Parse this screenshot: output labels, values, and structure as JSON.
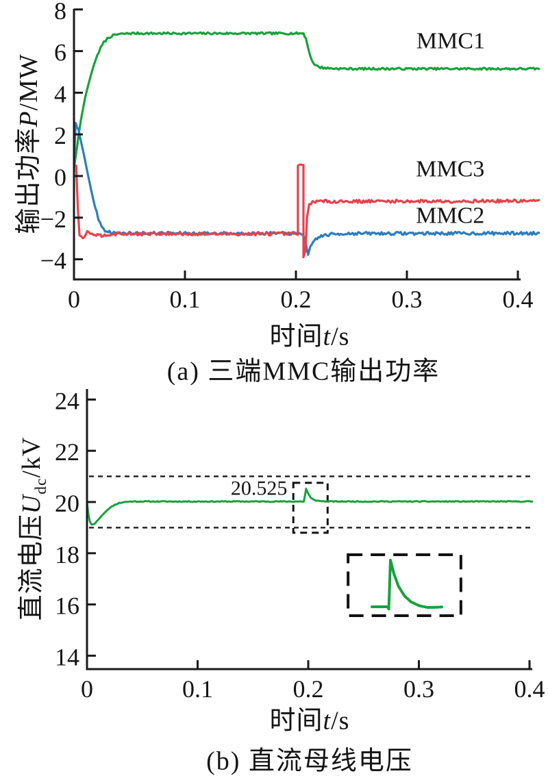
{
  "chart_data": [
    {
      "type": "line",
      "caption": "(a) 三端MMC输出功率",
      "xlabel": {
        "pre": "时间",
        "var": "t",
        "post": "/s"
      },
      "ylabel": {
        "pre": "输出功率",
        "var": "P",
        "post": "/MW"
      },
      "xlim": [
        0,
        0.42
      ],
      "ylim": [
        -5,
        8
      ],
      "grid": false,
      "xticks": [
        [
          0,
          "0"
        ],
        [
          0.1,
          "0.1"
        ],
        [
          0.2,
          "0.2"
        ],
        [
          0.3,
          "0.3"
        ],
        [
          0.4,
          "0.4"
        ]
      ],
      "yticks": [
        [
          8,
          "8"
        ],
        [
          6,
          "6"
        ],
        [
          4,
          "4"
        ],
        [
          2,
          "2"
        ],
        [
          0,
          "0"
        ],
        [
          -2,
          "−2"
        ],
        [
          -4,
          "−4"
        ]
      ],
      "series": [
        {
          "name": "MMC1",
          "color": "#17a23c",
          "points": [
            [
              0,
              0.4
            ],
            [
              0.002,
              1.1
            ],
            [
              0.004,
              1.9
            ],
            [
              0.006,
              2.6
            ],
            [
              0.008,
              3.2
            ],
            [
              0.01,
              3.75
            ],
            [
              0.0125,
              4.3
            ],
            [
              0.015,
              4.8
            ],
            [
              0.018,
              5.35
            ],
            [
              0.021,
              5.8
            ],
            [
              0.024,
              6.15
            ],
            [
              0.027,
              6.42
            ],
            [
              0.03,
              6.6
            ],
            [
              0.034,
              6.73
            ],
            [
              0.04,
              6.81
            ],
            [
              0.05,
              6.85
            ],
            [
              0.2068,
              6.85
            ],
            [
              0.209,
              6.6
            ],
            [
              0.211,
              6.15
            ],
            [
              0.213,
              5.75
            ],
            [
              0.2155,
              5.45
            ],
            [
              0.218,
              5.3
            ],
            [
              0.222,
              5.22
            ],
            [
              0.23,
              5.17
            ],
            [
              0.245,
              5.15
            ],
            [
              0.419,
              5.15
            ]
          ]
        },
        {
          "name": "MMC2",
          "color": "#2b7dbe",
          "points": [
            [
              0,
              0.6
            ],
            [
              0.0015,
              2.55
            ],
            [
              0.004,
              2.2
            ],
            [
              0.007,
              1.5
            ],
            [
              0.01,
              0.75
            ],
            [
              0.013,
              -0.05
            ],
            [
              0.016,
              -0.8
            ],
            [
              0.019,
              -1.5
            ],
            [
              0.022,
              -2.05
            ],
            [
              0.025,
              -2.4
            ],
            [
              0.028,
              -2.6
            ],
            [
              0.032,
              -2.7
            ],
            [
              0.04,
              -2.75
            ],
            [
              0.2055,
              -2.76
            ],
            [
              0.2075,
              -2.9
            ],
            [
              0.209,
              -3.3
            ],
            [
              0.211,
              -3.85
            ],
            [
              0.213,
              -3.45
            ],
            [
              0.2155,
              -3.15
            ],
            [
              0.219,
              -2.98
            ],
            [
              0.224,
              -2.87
            ],
            [
              0.232,
              -2.8
            ],
            [
              0.245,
              -2.76
            ],
            [
              0.419,
              -2.75
            ]
          ],
          "transient": {
            "t": 0.21,
            "min": -3.9
          }
        },
        {
          "name": "MMC3",
          "color": "#e8414c",
          "points": [
            [
              0,
              0.55
            ],
            [
              0.002,
              0.55
            ],
            [
              0.0035,
              -1.6
            ],
            [
              0.005,
              -2.85
            ],
            [
              0.008,
              -2.95
            ],
            [
              0.012,
              -2.7
            ],
            [
              0.016,
              -2.72
            ],
            [
              0.02,
              -2.83
            ],
            [
              0.025,
              -2.86
            ],
            [
              0.03,
              -2.8
            ],
            [
              0.04,
              -2.78
            ],
            [
              0.2018,
              -2.78
            ],
            [
              0.2018,
              0.49
            ],
            [
              0.2068,
              0.49
            ],
            [
              0.2068,
              -3.9
            ],
            [
              0.2085,
              -3.6
            ],
            [
              0.21,
              -2.0
            ],
            [
              0.212,
              -1.35
            ],
            [
              0.215,
              -1.22
            ],
            [
              0.419,
              -1.2
            ]
          ],
          "transient": {
            "t": 0.204,
            "peak": 0.49
          }
        }
      ],
      "labels": [
        {
          "text": "MMC1",
          "t": 0.3395,
          "v": 6.48
        },
        {
          "text": "MMC3",
          "t": 0.339,
          "v": 0.33
        },
        {
          "text": "MMC2",
          "t": 0.339,
          "v": -1.91
        }
      ]
    },
    {
      "type": "line",
      "caption": "(b) 直流母线电压",
      "xlabel": {
        "pre": "时间",
        "var": "t",
        "post": "/s"
      },
      "ylabel": {
        "pre": "直流电压",
        "var": "U",
        "sub": "dc",
        "post": "/kV"
      },
      "xlim": [
        0,
        0.405
      ],
      "ylim": [
        13.5,
        24.4
      ],
      "grid": false,
      "xticks": [
        [
          0,
          "0"
        ],
        [
          0.1,
          "0.1"
        ],
        [
          0.2,
          "0.2"
        ],
        [
          0.3,
          "0.3"
        ],
        [
          0.4,
          "0.4"
        ]
      ],
      "yticks": [
        [
          24,
          "24"
        ],
        [
          22,
          "22"
        ],
        [
          20,
          "20"
        ],
        [
          18,
          "18"
        ],
        [
          16,
          "16"
        ],
        [
          14,
          "14"
        ]
      ],
      "hlines": [
        {
          "v": 21
        },
        {
          "v": 19
        }
      ],
      "series": [
        {
          "name": "Udc",
          "color": "#17a23c",
          "points": [
            [
              0,
              20.0
            ],
            [
              0.001,
              19.6
            ],
            [
              0.0025,
              19.25
            ],
            [
              0.004,
              19.13
            ],
            [
              0.006,
              19.13
            ],
            [
              0.009,
              19.25
            ],
            [
              0.013,
              19.45
            ],
            [
              0.017,
              19.63
            ],
            [
              0.021,
              19.78
            ],
            [
              0.025,
              19.89
            ],
            [
              0.029,
              19.96
            ],
            [
              0.034,
              20.0
            ],
            [
              0.04,
              20.02
            ],
            [
              0.196,
              20.02
            ],
            [
              0.1972,
              20.3
            ],
            [
              0.198,
              20.52
            ],
            [
              0.199,
              20.42
            ],
            [
              0.2005,
              20.28
            ],
            [
              0.2025,
              20.15
            ],
            [
              0.205,
              20.08
            ],
            [
              0.21,
              20.04
            ],
            [
              0.218,
              20.02
            ],
            [
              0.4025,
              20.02
            ]
          ],
          "steady": 20.0,
          "peak": 20.525
        }
      ],
      "annotation": {
        "text": "20.525",
        "t": 0.181,
        "v": 20.53
      },
      "zoom_box": {
        "t0": 0.1865,
        "t1": 0.2175,
        "v0": 18.8,
        "v1": 20.75
      },
      "inset": {
        "box": {
          "t0": 0.236,
          "t1": 0.338,
          "v0": 15.56,
          "v1": 17.94
        },
        "curve": [
          [
            0.2576,
            15.91
          ],
          [
            0.2718,
            15.91
          ],
          [
            0.2728,
            15.82
          ],
          [
            0.2743,
            17.73
          ],
          [
            0.2774,
            17.2
          ],
          [
            0.2817,
            16.7
          ],
          [
            0.2867,
            16.35
          ],
          [
            0.2929,
            16.1
          ],
          [
            0.3003,
            15.95
          ],
          [
            0.3083,
            15.88
          ],
          [
            0.3207,
            15.9
          ]
        ]
      }
    }
  ]
}
